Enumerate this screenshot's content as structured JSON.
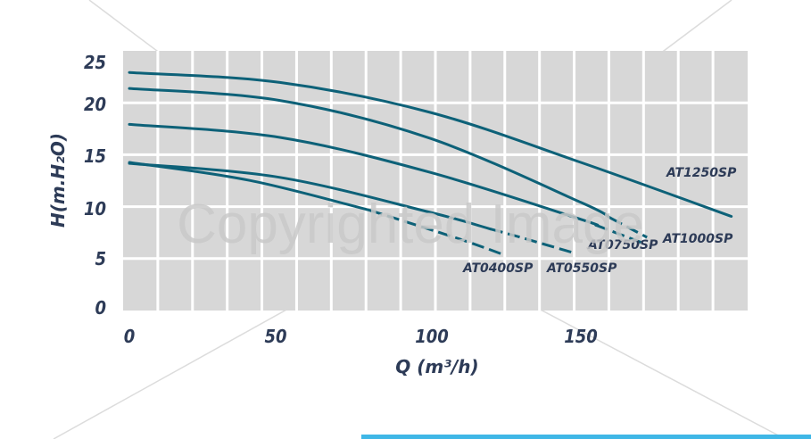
{
  "chart_data": {
    "type": "line",
    "xlabel": "Q (m³/h)",
    "ylabel": "H(m.H₂O)",
    "xlim": [
      0,
      200
    ],
    "ylim": [
      0,
      25
    ],
    "xticks": [
      0,
      50,
      100,
      150
    ],
    "xtick_labels": [
      "0",
      "50",
      "100",
      "150"
    ],
    "yticks": [
      0,
      5,
      10,
      15,
      20,
      25
    ],
    "ytick_labels": [
      "0",
      "5",
      "10",
      "15",
      "20",
      "25"
    ],
    "grid": true,
    "legend": "labels at curve ends",
    "series": [
      {
        "name": "AT0400SP",
        "x": [
          0,
          40,
          80,
          110,
          124
        ],
        "y": [
          15.0,
          13.2,
          10.2,
          7.3,
          5.8
        ],
        "dashed_from_x": 80
      },
      {
        "name": "AT0550SP",
        "x": [
          0,
          50,
          100,
          130,
          147
        ],
        "y": [
          14.9,
          13.5,
          10.0,
          7.5,
          6.0
        ],
        "dashed_from_x": 120
      },
      {
        "name": "AT0750SP",
        "x": [
          0,
          50,
          100,
          150,
          170
        ],
        "y": [
          18.8,
          17.5,
          14.0,
          9.3,
          7.0
        ],
        "dashed_from_x": 155
      },
      {
        "name": "AT1000SP",
        "x": [
          0,
          50,
          100,
          150,
          172
        ],
        "y": [
          22.4,
          21.2,
          17.4,
          11.0,
          7.5
        ],
        "dashed_from_x": 160
      },
      {
        "name": "AT1250SP",
        "x": [
          0,
          50,
          100,
          150,
          200
        ],
        "y": [
          24.0,
          23.0,
          20.0,
          15.0,
          9.6
        ],
        "dashed_from_x": null
      }
    ]
  },
  "watermark": "Copyrighted Image",
  "colors": {
    "plot_background": "#d7d7d7",
    "grid": "#ffffff",
    "curve": "#0d6178",
    "text": "#2d3b57",
    "accent_bar": "#3fb7e6"
  }
}
